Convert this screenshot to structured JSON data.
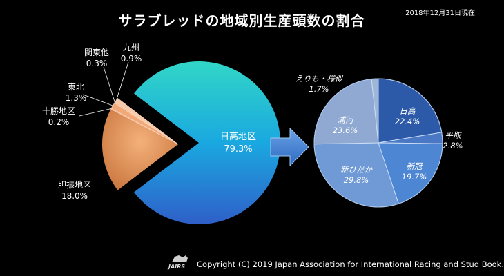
{
  "header": {
    "title": "サラブレッドの地域別生産頭数の割合",
    "date": "2018年12月31日現在"
  },
  "footer": {
    "copyright": "Copyright (C) 2019 Japan Association for International Racing and Stud Book.",
    "logo_text": "JAIRS"
  },
  "colors": {
    "background": "#000000",
    "hidaka_gradient": [
      "#31d6c7",
      "#1aa8e0",
      "#2f5fc8"
    ],
    "iburi": "#e0955a",
    "other_regions": "#f0a070",
    "right_pie_base": "#5b86c9",
    "arrow": "#4a8ad8"
  },
  "chart_data": [
    {
      "type": "pie",
      "title": "",
      "slices": [
        {
          "label": "日高地区",
          "value": 79.3,
          "display": "79.3%"
        },
        {
          "label": "胆振地区",
          "value": 18.0,
          "display": "18.0%"
        },
        {
          "label": "十勝地区",
          "value": 0.2,
          "display": "0.2%"
        },
        {
          "label": "東北",
          "value": 1.3,
          "display": "1.3%"
        },
        {
          "label": "関東他",
          "value": 0.3,
          "display": "0.3%"
        },
        {
          "label": "九州",
          "value": 0.9,
          "display": "0.9%"
        }
      ]
    },
    {
      "type": "pie",
      "title": "",
      "slices": [
        {
          "label": "日高",
          "value": 22.4,
          "display": "22.4%"
        },
        {
          "label": "平取",
          "value": 2.8,
          "display": "2.8%"
        },
        {
          "label": "新冠",
          "value": 19.7,
          "display": "19.7%"
        },
        {
          "label": "新ひだか",
          "value": 29.8,
          "display": "29.8%"
        },
        {
          "label": "浦河",
          "value": 23.6,
          "display": "23.6%"
        },
        {
          "label": "えりも・様似",
          "value": 1.7,
          "display": "1.7%"
        }
      ]
    }
  ]
}
